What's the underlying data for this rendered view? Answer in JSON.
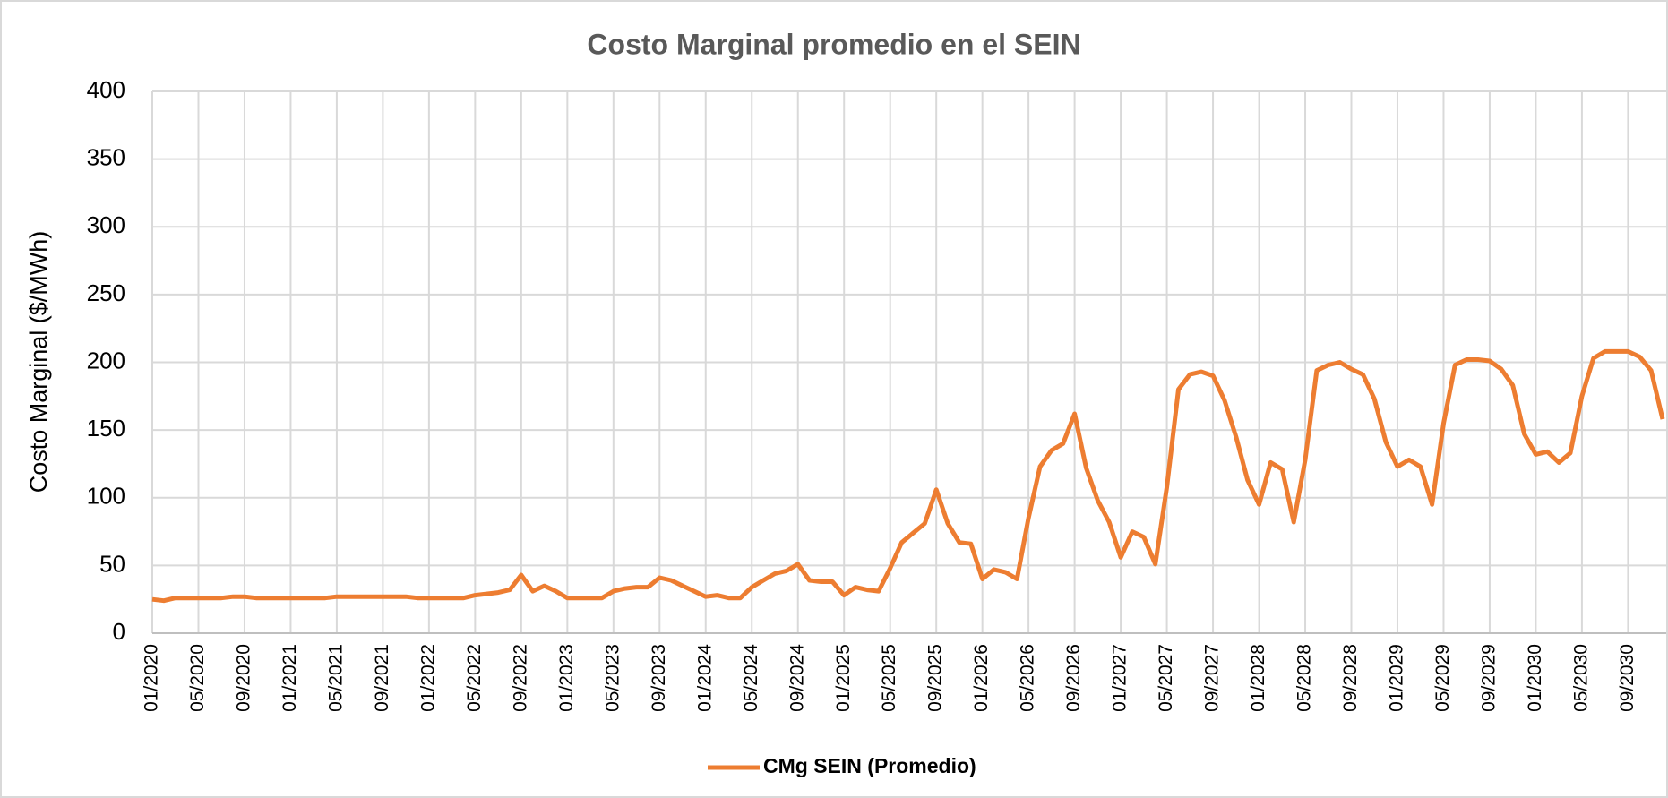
{
  "chart_data": {
    "type": "line",
    "title": "Costo Marginal promedio en el SEIN",
    "y_label": "Costo Marginal ($/MWh)",
    "categories": [
      "01/2020",
      null,
      null,
      null,
      "05/2020",
      null,
      null,
      null,
      "09/2020",
      null,
      null,
      null,
      "01/2021",
      null,
      null,
      null,
      "05/2021",
      null,
      null,
      null,
      "09/2021",
      null,
      null,
      null,
      "01/2022",
      null,
      null,
      null,
      "05/2022",
      null,
      null,
      null,
      "09/2022",
      null,
      null,
      null,
      "01/2023",
      null,
      null,
      null,
      "05/2023",
      null,
      null,
      null,
      "09/2023",
      null,
      null,
      null,
      "01/2024",
      null,
      null,
      null,
      "05/2024",
      null,
      null,
      null,
      "09/2024",
      null,
      null,
      null,
      "01/2025",
      null,
      null,
      null,
      "05/2025",
      null,
      null,
      null,
      "09/2025",
      null,
      null,
      null,
      "01/2026",
      null,
      null,
      null,
      "05/2026",
      null,
      null,
      null,
      "09/2026",
      null,
      null,
      null,
      "01/2027",
      null,
      null,
      null,
      "05/2027",
      null,
      null,
      null,
      "09/2027",
      null,
      null,
      null,
      "01/2028",
      null,
      null,
      null,
      "05/2028",
      null,
      null,
      null,
      "09/2028",
      null,
      null,
      null,
      "01/2029",
      null,
      null,
      null,
      "05/2029",
      null,
      null,
      null,
      "09/2029",
      null,
      null,
      null,
      "01/2030",
      null,
      null,
      null,
      "05/2030",
      null,
      null,
      null,
      "09/2030",
      null,
      null,
      null
    ],
    "series": [
      {
        "name": "CMg SEIN (Promedio)",
        "color": "#ed7d31",
        "values": [
          25,
          24,
          26,
          26,
          26,
          26,
          26,
          27,
          27,
          26,
          26,
          26,
          26,
          26,
          26,
          26,
          27,
          27,
          27,
          27,
          27,
          27,
          27,
          26,
          26,
          26,
          26,
          26,
          28,
          29,
          30,
          32,
          43,
          31,
          35,
          31,
          26,
          26,
          26,
          26,
          31,
          33,
          34,
          34,
          41,
          39,
          35,
          31,
          27,
          28,
          26,
          26,
          34,
          39,
          44,
          46,
          51,
          39,
          38,
          38,
          28,
          34,
          32,
          31,
          48,
          67,
          74,
          81,
          106,
          81,
          67,
          66,
          40,
          47,
          45,
          40,
          85,
          123,
          135,
          140,
          162,
          122,
          98,
          82,
          56,
          75,
          71,
          51,
          108,
          180,
          191,
          193,
          190,
          172,
          145,
          113,
          95,
          126,
          121,
          82,
          128,
          194,
          198,
          200,
          195,
          191,
          173,
          141,
          123,
          128,
          123,
          95,
          155,
          198,
          202,
          202,
          201,
          195,
          183,
          147,
          132,
          134,
          126,
          133,
          175,
          203,
          208,
          208,
          208,
          204,
          194,
          158
        ]
      }
    ],
    "ylim": [
      0,
      400
    ],
    "yticks": [
      0,
      50,
      100,
      150,
      200,
      250,
      300,
      350,
      400
    ],
    "grid": true,
    "legend": "bottom"
  }
}
